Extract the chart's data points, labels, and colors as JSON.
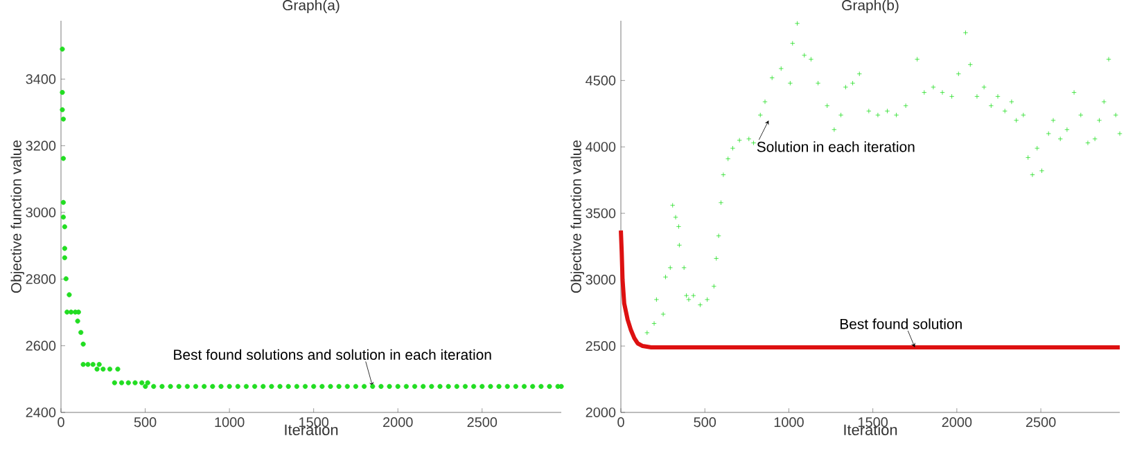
{
  "chart_data": [
    {
      "type": "scatter",
      "title": "Graph(a)",
      "xlabel": "Iteration",
      "ylabel": "Objective function value",
      "xlim": [
        0,
        2970
      ],
      "ylim": [
        2400,
        3575
      ],
      "xticks": [
        0,
        500,
        1000,
        1500,
        2000,
        2500
      ],
      "yticks": [
        2400,
        2600,
        2800,
        3000,
        3200,
        3400
      ],
      "annotations": [
        {
          "text": "Best found solutions and solution in each iteration",
          "x": 1850,
          "y": 2478
        }
      ],
      "series": [
        {
          "marker": "circle",
          "color": "#22dd22",
          "x": [
            8,
            8,
            8,
            14,
            14,
            14,
            14,
            22,
            22,
            22,
            30,
            49,
            36,
            60,
            85,
            104,
            99,
            118,
            132,
            132,
            160,
            190,
            227,
            214,
            250,
            290,
            337,
            318,
            360,
            400,
            440,
            480,
            515,
            501,
            550,
            600,
            650,
            700,
            750,
            800,
            850,
            900,
            950,
            1000,
            1050,
            1100,
            1150,
            1200,
            1250,
            1300,
            1350,
            1400,
            1450,
            1500,
            1550,
            1600,
            1650,
            1700,
            1750,
            1800,
            1850,
            1900,
            1950,
            2000,
            2050,
            2100,
            2150,
            2200,
            2250,
            2300,
            2350,
            2400,
            2450,
            2500,
            2550,
            2600,
            2650,
            2700,
            2750,
            2800,
            2850,
            2900,
            2950,
            2970
          ],
          "values": [
            3490,
            3360,
            3308,
            3280,
            3162,
            3030,
            2986,
            2957,
            2892,
            2864,
            2801,
            2753,
            2701,
            2701,
            2701,
            2701,
            2674,
            2640,
            2605,
            2544,
            2544,
            2544,
            2544,
            2530,
            2530,
            2530,
            2530,
            2489,
            2489,
            2489,
            2489,
            2489,
            2489,
            2478,
            2478,
            2478,
            2478,
            2478,
            2478,
            2478,
            2478,
            2478,
            2478,
            2478,
            2478,
            2478,
            2478,
            2478,
            2478,
            2478,
            2478,
            2478,
            2478,
            2478,
            2478,
            2478,
            2478,
            2478,
            2478,
            2478,
            2478,
            2478,
            2478,
            2478,
            2478,
            2478,
            2478,
            2478,
            2478,
            2478,
            2478,
            2478,
            2478,
            2478,
            2478,
            2478,
            2478,
            2478,
            2478,
            2478,
            2478,
            2478,
            2478,
            2478
          ]
        }
      ]
    },
    {
      "type": "scatter",
      "title": "Graph(b)",
      "xlabel": "Iteration",
      "ylabel": "Objective function value",
      "xlim": [
        0,
        2970
      ],
      "ylim": [
        2000,
        4950
      ],
      "xticks": [
        0,
        500,
        1000,
        1500,
        2000,
        2500
      ],
      "yticks": [
        2000,
        2500,
        3000,
        3500,
        4000,
        4500
      ],
      "annotations": [
        {
          "text": "Solution in each iteration",
          "x": 880,
          "y": 4200
        },
        {
          "text": "Best found solution",
          "x": 1750,
          "y": 2490
        }
      ],
      "series": [
        {
          "marker": "cross",
          "color": "#22dd22",
          "x": [
            156,
            198,
            212,
            252,
            266,
            294,
            308,
            326,
            344,
            348,
            376,
            390,
            404,
            432,
            472,
            514,
            554,
            568,
            582,
            596,
            610,
            638,
            666,
            706,
            762,
            790,
            830,
            858,
            900,
            954,
            1008,
            1022,
            1050,
            1092,
            1132,
            1174,
            1228,
            1270,
            1310,
            1338,
            1380,
            1420,
            1476,
            1530,
            1586,
            1640,
            1696,
            1764,
            1806,
            1860,
            1914,
            1970,
            2010,
            2052,
            2080,
            2120,
            2162,
            2204,
            2244,
            2286,
            2326,
            2354,
            2396,
            2424,
            2450,
            2478,
            2506,
            2546,
            2574,
            2616,
            2656,
            2698,
            2738,
            2780,
            2822,
            2848,
            2876,
            2904,
            2946,
            2970
          ],
          "values": [
            2600,
            2670,
            2850,
            2740,
            3020,
            3090,
            3560,
            3470,
            3400,
            3260,
            3090,
            2880,
            2850,
            2880,
            2810,
            2850,
            2950,
            3160,
            3330,
            3580,
            3790,
            3910,
            3990,
            4050,
            4060,
            4030,
            4240,
            4340,
            4520,
            4590,
            4480,
            4780,
            4930,
            4690,
            4660,
            4480,
            4310,
            4130,
            4240,
            4450,
            4480,
            4550,
            4270,
            4240,
            4270,
            4240,
            4310,
            4660,
            4410,
            4450,
            4410,
            4380,
            4550,
            4860,
            4620,
            4380,
            4450,
            4310,
            4380,
            4270,
            4340,
            4200,
            4240,
            3920,
            3790,
            3990,
            3820,
            4100,
            4200,
            4060,
            4130,
            4410,
            4240,
            4030,
            4060,
            4200,
            4340,
            4660,
            4240,
            4100
          ]
        },
        {
          "type": "line",
          "marker": "none",
          "color": "#dd1111",
          "x": [
            0,
            5,
            10,
            20,
            40,
            60,
            80,
            100,
            130,
            180,
            2970
          ],
          "values": [
            3370,
            3210,
            3000,
            2820,
            2700,
            2620,
            2560,
            2520,
            2500,
            2490,
            2490
          ]
        }
      ]
    }
  ]
}
